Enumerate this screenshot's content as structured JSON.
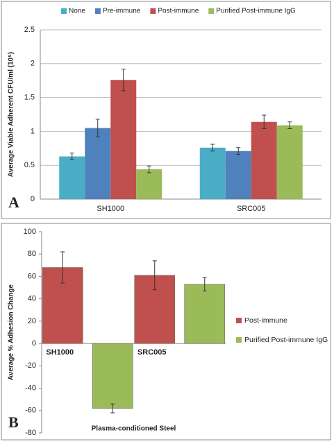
{
  "chart_data": [
    {
      "type": "bar",
      "panel_label": "A",
      "y_label": "Average Viable Adherent CFU/ml (10⁵)",
      "categories": [
        "SH1000",
        "SRC005"
      ],
      "series": [
        {
          "name": "None",
          "color": "#4bacc6",
          "values": [
            0.63,
            0.76
          ],
          "errors": [
            0.05,
            0.05
          ]
        },
        {
          "name": "Pre-immune",
          "color": "#4f81bd",
          "values": [
            1.05,
            0.71
          ],
          "errors": [
            0.13,
            0.05
          ]
        },
        {
          "name": "Post-immune",
          "color": "#c0504d",
          "values": [
            1.76,
            1.14
          ],
          "errors": [
            0.16,
            0.1
          ]
        },
        {
          "name": "Purified Post-immune IgG",
          "color": "#9bbb59",
          "values": [
            0.44,
            1.09
          ],
          "errors": [
            0.05,
            0.05
          ]
        }
      ],
      "ylim": [
        0,
        2.5
      ],
      "yticks": [
        0,
        0.5,
        1,
        1.5,
        2,
        2.5
      ],
      "grid": true,
      "legend": "top"
    },
    {
      "type": "bar",
      "panel_label": "B",
      "y_label": "Average % Adhesion Change",
      "x_label": "Plasma-conditioned Steel",
      "categories": [
        "SH1000",
        "SRC005"
      ],
      "series": [
        {
          "name": "Post-immune",
          "color": "#c0504d",
          "values": [
            68,
            61
          ],
          "errors": [
            14,
            13
          ]
        },
        {
          "name": "Purified Post-immune IgG",
          "color": "#9bbb59",
          "values": [
            -58,
            53
          ],
          "errors": [
            4,
            6
          ]
        }
      ],
      "ylim": [
        -80,
        100
      ],
      "yticks": [
        -80,
        -60,
        -40,
        -20,
        0,
        20,
        40,
        60,
        80,
        100
      ],
      "grid": false,
      "legend": "right"
    }
  ]
}
